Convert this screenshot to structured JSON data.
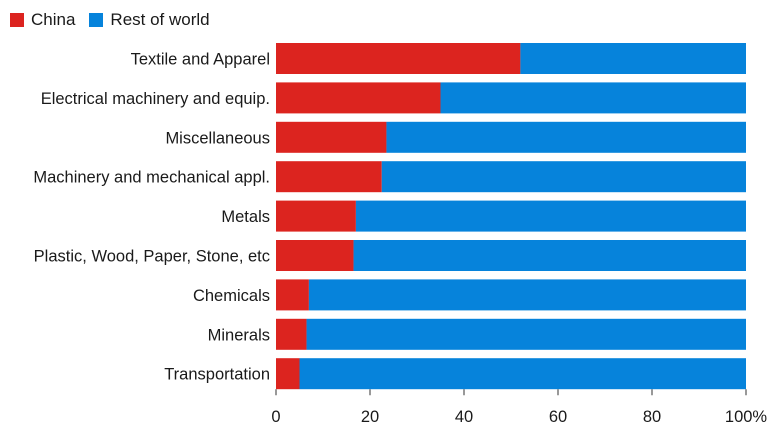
{
  "chart_data": {
    "type": "bar",
    "orientation": "horizontal",
    "stacked": true,
    "title": "",
    "xlabel": "",
    "ylabel": "",
    "xlim": [
      0,
      100
    ],
    "x_ticks": [
      0,
      20,
      40,
      60,
      80,
      100
    ],
    "x_tick_labels": [
      "0",
      "20",
      "40",
      "60",
      "80",
      "100%"
    ],
    "grid": false,
    "legend_position": "top-left",
    "categories": [
      "Textile and Apparel",
      "Electrical machinery and equip.",
      "Miscellaneous",
      "Machinery and mechanical appl.",
      "Metals",
      "Plastic, Wood, Paper, Stone, etc",
      "Chemicals",
      "Minerals",
      "Transportation"
    ],
    "series": [
      {
        "name": "China",
        "color": "#dc241f",
        "values": [
          52,
          35,
          23.5,
          22.5,
          17,
          16.5,
          7,
          6.5,
          5
        ]
      },
      {
        "name": "Rest of world",
        "color": "#0683db",
        "values": [
          48,
          65,
          76.5,
          77.5,
          83,
          83.5,
          93,
          93.5,
          95
        ]
      }
    ]
  },
  "legend": {
    "items": [
      {
        "label": "China",
        "color": "#dc241f"
      },
      {
        "label": "Rest of world",
        "color": "#0683db"
      }
    ]
  }
}
